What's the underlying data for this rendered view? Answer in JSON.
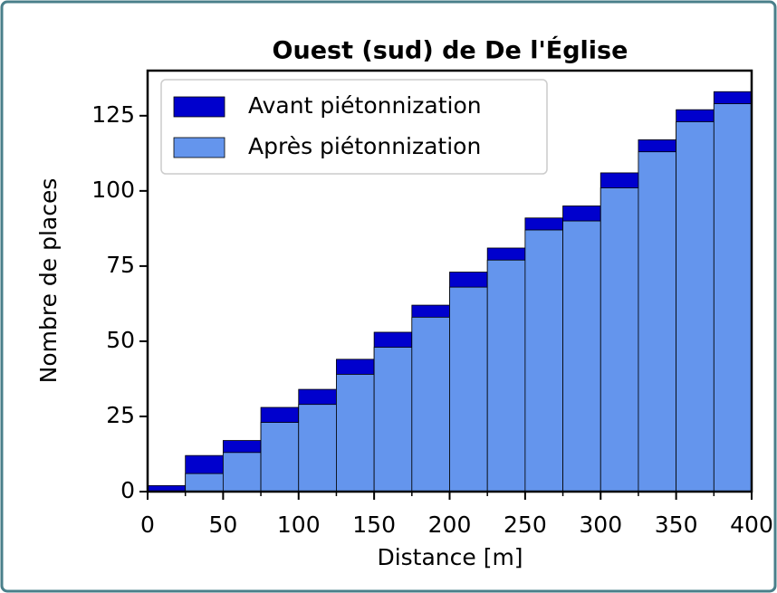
{
  "chart_data": {
    "type": "histogram",
    "title": "Ouest (sud) de De l'Église",
    "xlabel": "Distance [m]",
    "ylabel": "Nombre de places",
    "bins": [
      0,
      25,
      50,
      75,
      100,
      125,
      150,
      175,
      200,
      225,
      250,
      275,
      300,
      325,
      350,
      375,
      400
    ],
    "series": [
      {
        "name": "Avant piétonnization",
        "color": "#0000cd",
        "values": [
          2,
          12,
          17,
          28,
          34,
          44,
          53,
          62,
          73,
          81,
          91,
          95,
          106,
          117,
          127,
          133
        ]
      },
      {
        "name": "Après piétonnization",
        "color": "#6495ed",
        "values": [
          0,
          6,
          13,
          23,
          29,
          39,
          48,
          58,
          68,
          77,
          87,
          90,
          101,
          113,
          123,
          129
        ]
      }
    ],
    "xlim": [
      0,
      400
    ],
    "xticks": [
      0,
      50,
      100,
      150,
      200,
      250,
      300,
      350,
      400
    ],
    "xminorticks": [
      25,
      75,
      125,
      175,
      225,
      275,
      325,
      375
    ],
    "ylim": [
      0,
      140
    ],
    "yticks": [
      0,
      25,
      50,
      75,
      100,
      125
    ],
    "legend": "upper-left"
  }
}
